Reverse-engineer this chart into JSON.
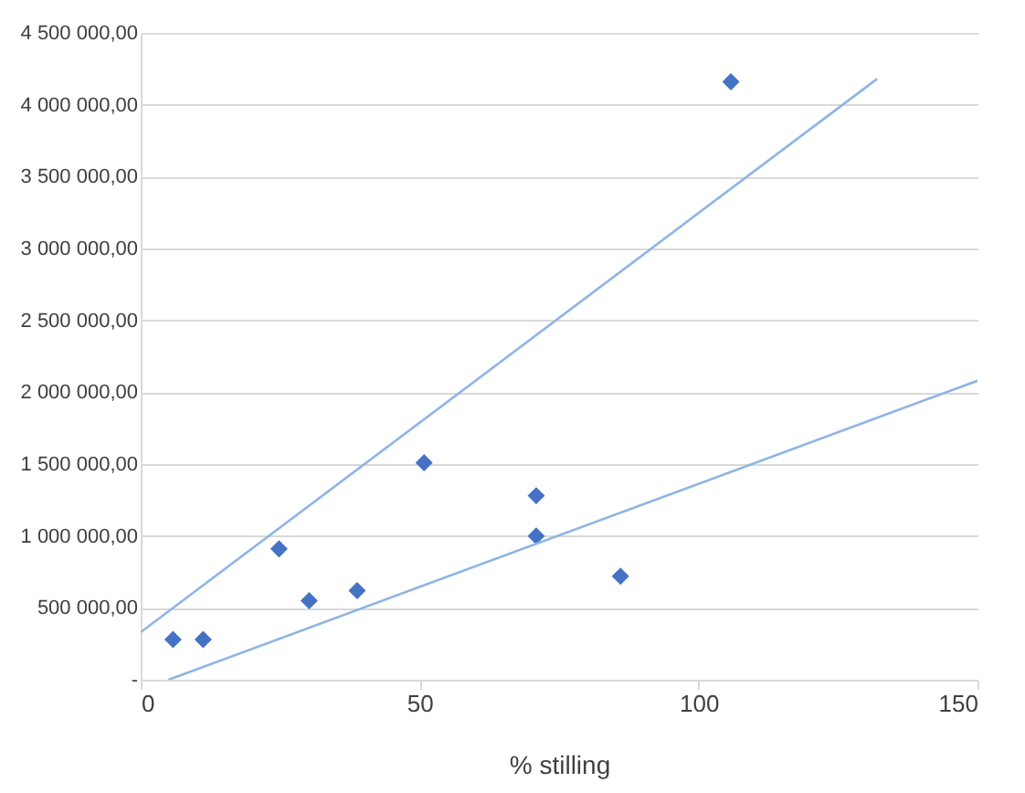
{
  "chart_data": {
    "type": "scatter",
    "xlabel": "% stilling",
    "series": [
      {
        "color": "#4472c4",
        "marker": "diamond",
        "x": [
          5.8,
          11.2,
          24.8,
          30.2,
          38.8,
          50.8,
          70.9,
          70.9,
          86,
          105.8
        ],
        "values": [
          280000,
          280000,
          910000,
          550000,
          620000,
          1510000,
          1280000,
          1000000,
          720000,
          4160000
        ]
      },
      {
        "type": "line",
        "color": "#8fb4e3",
        "x": [
          0,
          132
        ],
        "values": [
          330000,
          4180000
        ]
      },
      {
        "type": "line",
        "color": "#8fb4e3",
        "x": [
          5,
          150
        ],
        "values": [
          0,
          2080000
        ]
      }
    ],
    "xlim": [
      0,
      150
    ],
    "xticks": [
      0,
      50,
      100,
      150
    ],
    "ylim": [
      0,
      4500000
    ],
    "yticks": [
      {
        "value": 0,
        "label": "-"
      },
      {
        "value": 500000,
        "label": "500 000,00"
      },
      {
        "value": 1000000,
        "label": "1 000 000,00"
      },
      {
        "value": 1500000,
        "label": "1 500 000,00"
      },
      {
        "value": 2000000,
        "label": "2 000 000,00"
      },
      {
        "value": 2500000,
        "label": "2 500 000,00"
      },
      {
        "value": 3000000,
        "label": "3 000 000,00"
      },
      {
        "value": 3500000,
        "label": "3 500 000,00"
      },
      {
        "value": 4000000,
        "label": "4 000 000,00"
      },
      {
        "value": 4500000,
        "label": "4 500 000,00"
      }
    ],
    "grid": "y"
  }
}
